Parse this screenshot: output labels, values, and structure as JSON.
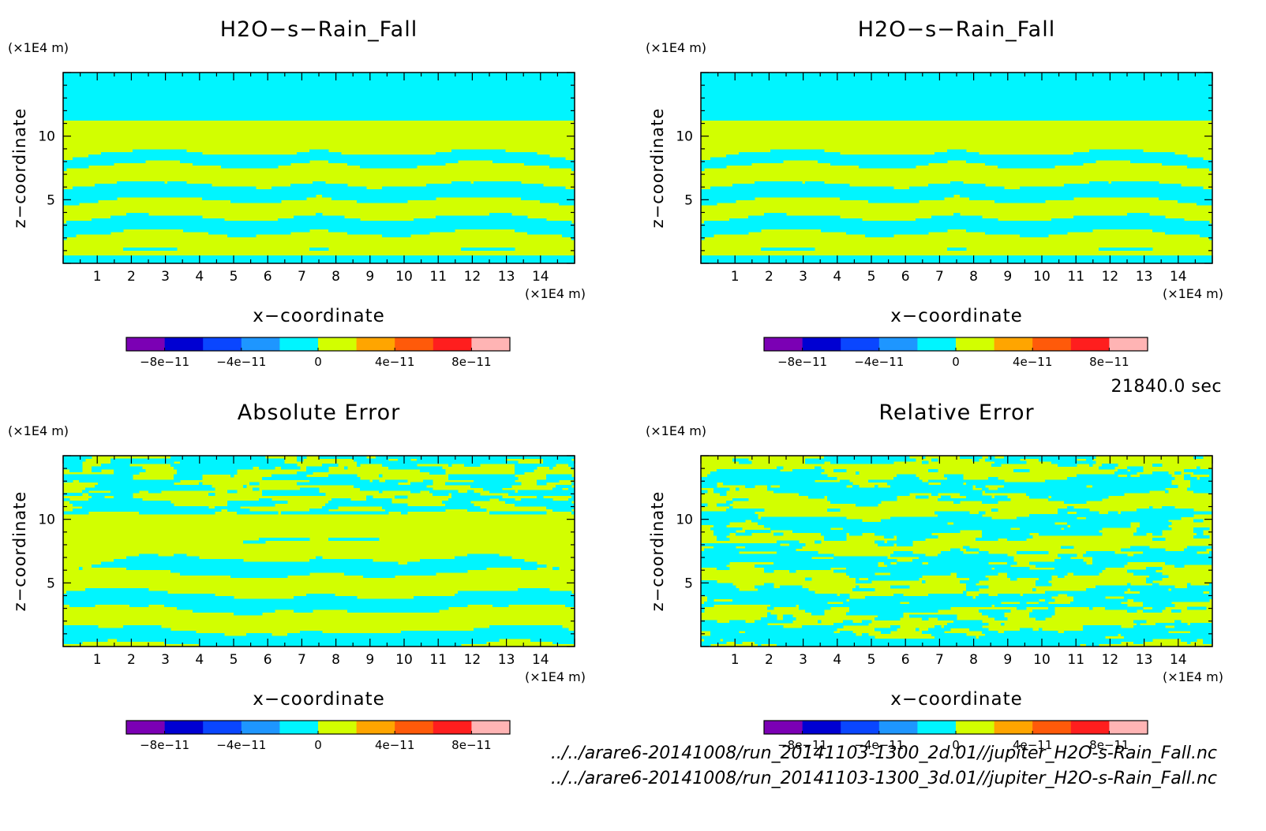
{
  "time_label": "21840.0 sec",
  "file_paths": [
    "../../arare6-20141008/run_20141103-1300_2d.01//jupiter_H2O-s-Rain_Fall.nc",
    "../../arare6-20141008/run_20141103-1300_3d.01//jupiter_H2O-s-Rain_Fall.nc"
  ],
  "colorbar": {
    "colors": [
      "#7b00b4",
      "#0000d2",
      "#0a46ff",
      "#1e96ff",
      "#00f5ff",
      "#d2ff00",
      "#ffa500",
      "#ff5a0a",
      "#ff1e1e",
      "#ffb4b4"
    ],
    "ticks": [
      {
        "value": -8e-11,
        "label": "−8e−11"
      },
      {
        "value": -4e-11,
        "label": "−4e−11"
      },
      {
        "value": 0,
        "label": "0"
      },
      {
        "value": 4e-11,
        "label": "4e−11"
      },
      {
        "value": 8e-11,
        "label": "8e−11"
      }
    ],
    "range": [
      -1e-10,
      1e-10
    ]
  },
  "chart_data": [
    {
      "type": "heatmap",
      "id": "rain-fall-2d",
      "title": "H2O−s−Rain_Fall",
      "xlabel": "x−coordinate",
      "ylabel": "z−coordinate",
      "x_unit": "(×1E4 m)",
      "y_unit": "(×1E4 m)",
      "xlim": [
        0,
        15
      ],
      "ylim": [
        0,
        15
      ],
      "x_ticks": [
        1,
        2,
        3,
        4,
        5,
        6,
        7,
        8,
        9,
        10,
        11,
        12,
        13,
        14
      ],
      "y_ticks": [
        5,
        10
      ],
      "pattern": "field",
      "colors_used": [
        "#00f5ff",
        "#d2ff00"
      ]
    },
    {
      "type": "heatmap",
      "id": "rain-fall-3d",
      "title": "H2O−s−Rain_Fall",
      "xlabel": "x−coordinate",
      "ylabel": "z−coordinate",
      "x_unit": "(×1E4 m)",
      "y_unit": "(×1E4 m)",
      "xlim": [
        0,
        15
      ],
      "ylim": [
        0,
        15
      ],
      "x_ticks": [
        1,
        2,
        3,
        4,
        5,
        6,
        7,
        8,
        9,
        10,
        11,
        12,
        13,
        14
      ],
      "y_ticks": [
        5,
        10
      ],
      "pattern": "field",
      "colors_used": [
        "#00f5ff",
        "#d2ff00"
      ]
    },
    {
      "type": "heatmap",
      "id": "absolute-error",
      "title": "Absolute Error",
      "xlabel": "x−coordinate",
      "ylabel": "z−coordinate",
      "x_unit": "(×1E4 m)",
      "y_unit": "(×1E4 m)",
      "xlim": [
        0,
        15
      ],
      "ylim": [
        0,
        15
      ],
      "x_ticks": [
        1,
        2,
        3,
        4,
        5,
        6,
        7,
        8,
        9,
        10,
        11,
        12,
        13,
        14
      ],
      "y_ticks": [
        5,
        10
      ],
      "pattern": "abs_error",
      "colors_used": [
        "#00f5ff",
        "#d2ff00"
      ]
    },
    {
      "type": "heatmap",
      "id": "relative-error",
      "title": "Relative Error",
      "xlabel": "x−coordinate",
      "ylabel": "z−coordinate",
      "x_unit": "(×1E4 m)",
      "y_unit": "(×1E4 m)",
      "xlim": [
        0,
        15
      ],
      "ylim": [
        0,
        15
      ],
      "x_ticks": [
        1,
        2,
        3,
        4,
        5,
        6,
        7,
        8,
        9,
        10,
        11,
        12,
        13,
        14
      ],
      "y_ticks": [
        5,
        10
      ],
      "pattern": "rel_error",
      "colors_used": [
        "#00f5ff",
        "#d2ff00"
      ]
    }
  ]
}
